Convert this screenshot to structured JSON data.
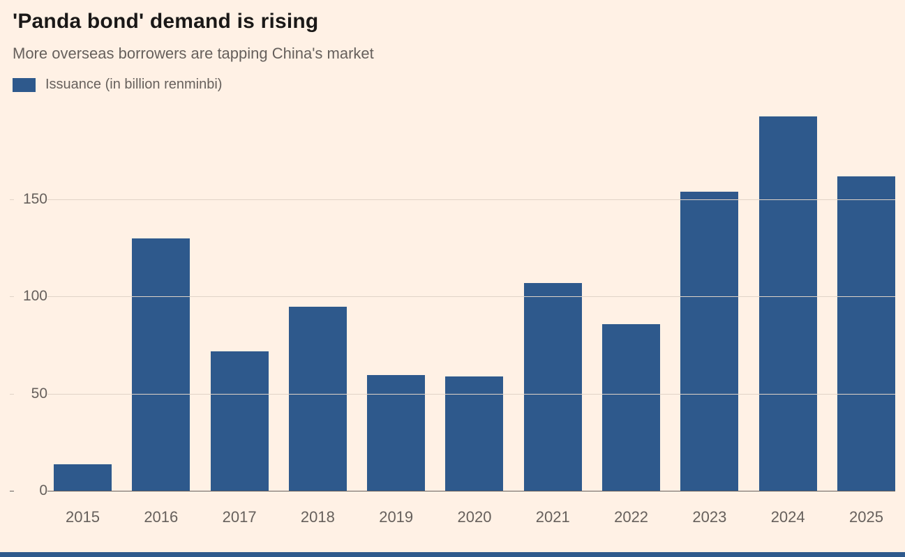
{
  "page": {
    "title": "'Panda bond' demand is rising",
    "subtitle": "More overseas borrowers are tapping China's market"
  },
  "legend": {
    "label": "Issuance (in billion renminbi)"
  },
  "colors": {
    "background": "#FFF1E5",
    "bar": "#2E598C",
    "title_text": "#1A1817",
    "muted_text": "#66605C",
    "gridline": "#E0D3C7",
    "baseline": "#66605C"
  },
  "chart_data": {
    "type": "bar",
    "title": "'Panda bond' demand is rising",
    "subtitle": "More overseas borrowers are tapping China's market",
    "legend": [
      "Issuance (in billion renminbi)"
    ],
    "categories": [
      "2015",
      "2016",
      "2017",
      "2018",
      "2019",
      "2020",
      "2021",
      "2022",
      "2023",
      "2024",
      "2025"
    ],
    "values": [
      14,
      130,
      72,
      95,
      60,
      59,
      107,
      86,
      154,
      193,
      162
    ],
    "xlabel": "",
    "ylabel": "Issuance (in billion renminbi)",
    "yticks": [
      0,
      50,
      100,
      150
    ],
    "ylim": [
      0,
      200
    ],
    "grid": true,
    "legend_position": "top-left",
    "bar_color": "#2E598C"
  }
}
